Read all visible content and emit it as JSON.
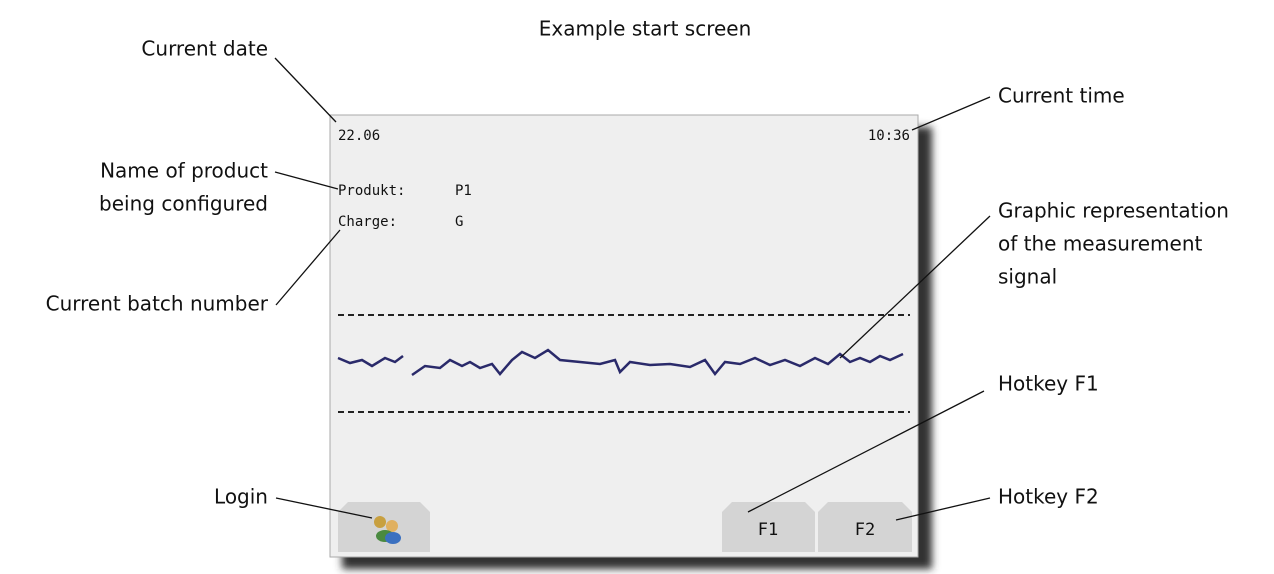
{
  "title": "Example start screen",
  "screen": {
    "date": "22.06",
    "time": "10:36",
    "product_label": "Produkt:",
    "product_value": "P1",
    "charge_label": "Charge:",
    "charge_value": "G",
    "buttons": [
      "F1",
      "F2"
    ]
  },
  "annotations": [
    {
      "lines": [
        "Current date"
      ]
    },
    {
      "lines": [
        "Current time"
      ]
    },
    {
      "lines": [
        "Name of product",
        "being configured"
      ]
    },
    {
      "lines": [
        "Current batch number"
      ]
    },
    {
      "lines": [
        "Graphic representation",
        "of the measurement",
        "signal"
      ]
    },
    {
      "lines": [
        "Hotkey F1"
      ]
    },
    {
      "lines": [
        "Login"
      ]
    },
    {
      "lines": [
        "Hotkey F2"
      ]
    }
  ]
}
